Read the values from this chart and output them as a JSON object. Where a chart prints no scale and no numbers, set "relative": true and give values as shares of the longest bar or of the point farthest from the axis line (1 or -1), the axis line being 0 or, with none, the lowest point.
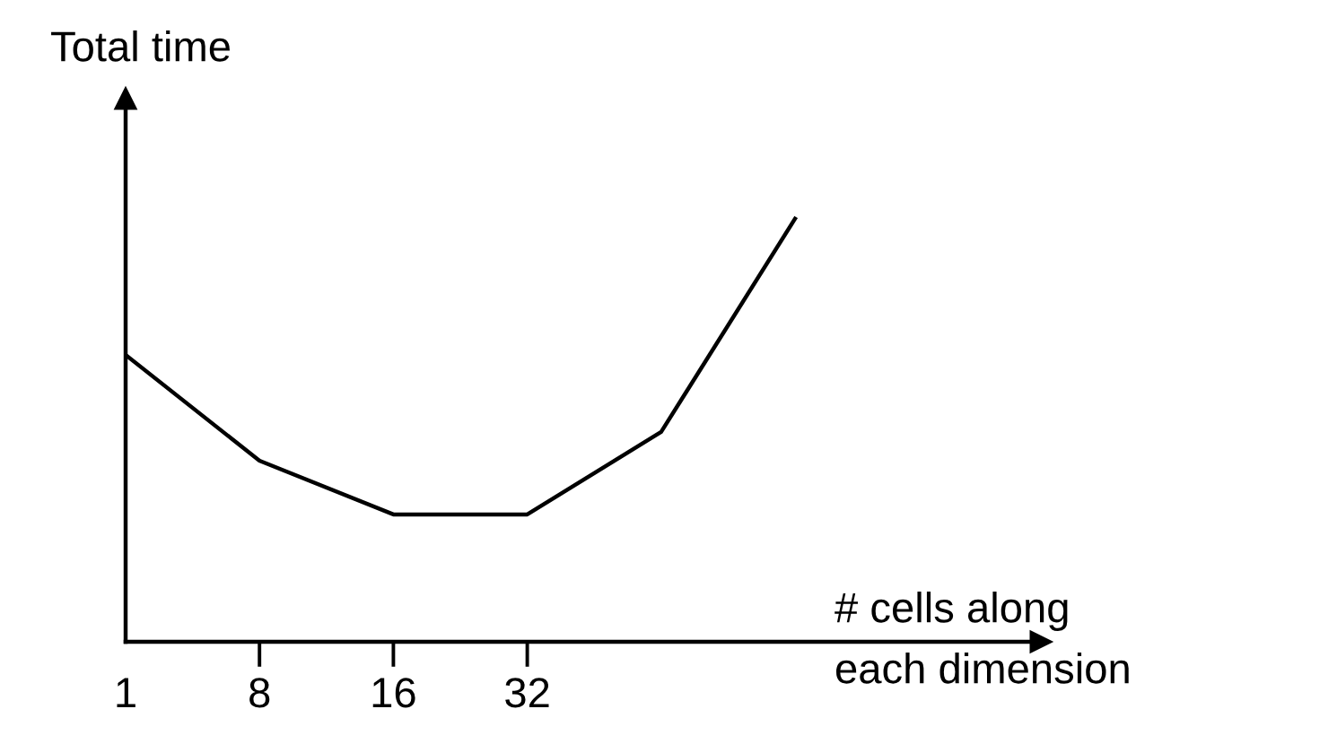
{
  "chart_data": {
    "type": "line",
    "ylabel": "Total time",
    "xlabel": "# cells along\neach dimension",
    "categories": [
      "1",
      "8",
      "16",
      "32",
      null,
      null
    ],
    "values": [
      0.678,
      0.428,
      0.301,
      0.301,
      0.496,
      1
    ],
    "color": "#000000",
    "relative": true,
    "marker": "none",
    "line_style": "solid",
    "legend": false
  }
}
